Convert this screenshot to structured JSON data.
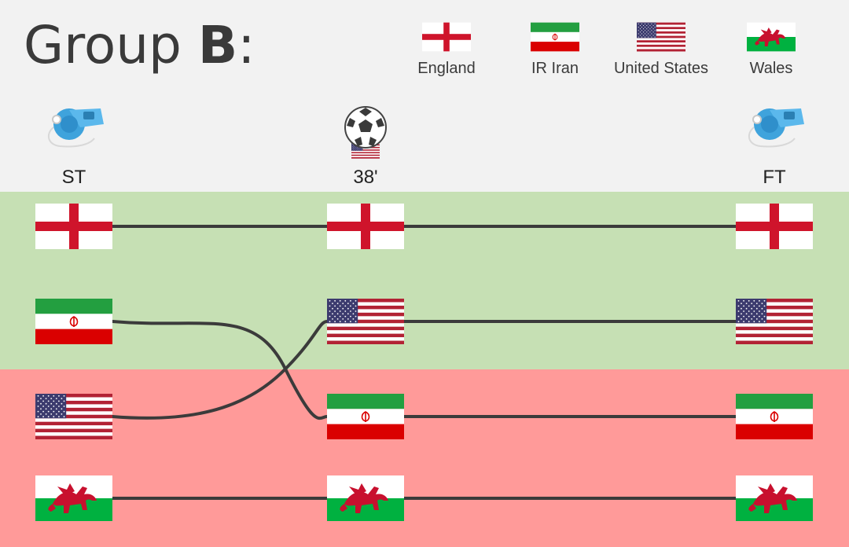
{
  "title": {
    "prefix": "Group ",
    "group": "B",
    "suffix": ":"
  },
  "teams": {
    "eng": {
      "name": "England"
    },
    "irn": {
      "name": "IR Iran"
    },
    "usa": {
      "name": "United States"
    },
    "wal": {
      "name": "Wales"
    }
  },
  "legend": [
    "eng",
    "irn",
    "usa",
    "wal"
  ],
  "stages": [
    {
      "label": "ST",
      "icon": "whistle-icon",
      "order": [
        "eng",
        "irn",
        "usa",
        "wal"
      ]
    },
    {
      "label": "38'",
      "icon": "soccer-ball-icon",
      "event_team": "usa",
      "order": [
        "eng",
        "usa",
        "irn",
        "wal"
      ]
    },
    {
      "label": "FT",
      "icon": "whistle-icon",
      "order": [
        "eng",
        "usa",
        "irn",
        "wal"
      ]
    }
  ],
  "zones": {
    "advance_color": "#c6e0b4",
    "eliminated_color": "#ff9a99"
  },
  "colors": {
    "line": "#3b3b3b",
    "england_red": "#cf142b",
    "iran_green": "#239f40",
    "iran_red": "#da0000",
    "usa_red": "#b22234",
    "usa_blue": "#3c3b6e",
    "wales_green": "#00b140",
    "wales_red": "#c8102e",
    "whistle_blue": "#3fa3dc"
  }
}
